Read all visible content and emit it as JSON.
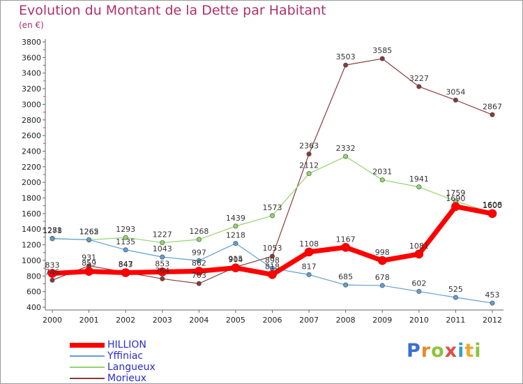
{
  "title": "Evolution du Montant de la Dette par Habitant",
  "subtitle": "(en €)",
  "logo": {
    "letters": [
      "P",
      "r",
      "o",
      "x",
      "i",
      "t",
      "i"
    ]
  },
  "colors": {
    "title": "#b0306a",
    "legend_text": "#2a2ad0",
    "HILLION": "#ff0000",
    "Yffiniac": "#5f9fd2",
    "Langueux": "#92d56c",
    "Morieux": "#8a3a3a"
  },
  "chart_data": {
    "type": "line",
    "title": "Evolution du Montant de la Dette par Habitant",
    "subtitle": "(en €)",
    "xlabel": "",
    "ylabel": "",
    "categories": [
      "2000",
      "2001",
      "2002",
      "2003",
      "2004",
      "2005",
      "2006",
      "2007",
      "2008",
      "2009",
      "2010",
      "2011",
      "2012"
    ],
    "ylim": [
      400,
      3800
    ],
    "yticks": [
      400,
      600,
      800,
      1000,
      1200,
      1400,
      1600,
      1800,
      2000,
      2200,
      2400,
      2600,
      2800,
      3000,
      3200,
      3400,
      3600,
      3800
    ],
    "grid": false,
    "legend_position": "bottom-left",
    "series": [
      {
        "name": "HILLION",
        "values": [
          833,
          859,
          843,
          853,
          862,
          904,
          818,
          1108,
          1167,
          998,
          1081,
          1690,
          1600
        ]
      },
      {
        "name": "Yffiniac",
        "values": [
          1278,
          1265,
          1135,
          1043,
          997,
          1218,
          898,
          817,
          685,
          678,
          602,
          525,
          453
        ]
      },
      {
        "name": "Langueux",
        "values": [
          1281,
          1262,
          1293,
          1227,
          1268,
          1439,
          1573,
          2112,
          2332,
          2031,
          1941,
          1759,
          1608
        ]
      },
      {
        "name": "Morieux",
        "values": [
          746,
          931,
          847,
          764,
          703,
          915,
          1053,
          2363,
          3503,
          3585,
          3227,
          3054,
          2867
        ]
      }
    ]
  }
}
